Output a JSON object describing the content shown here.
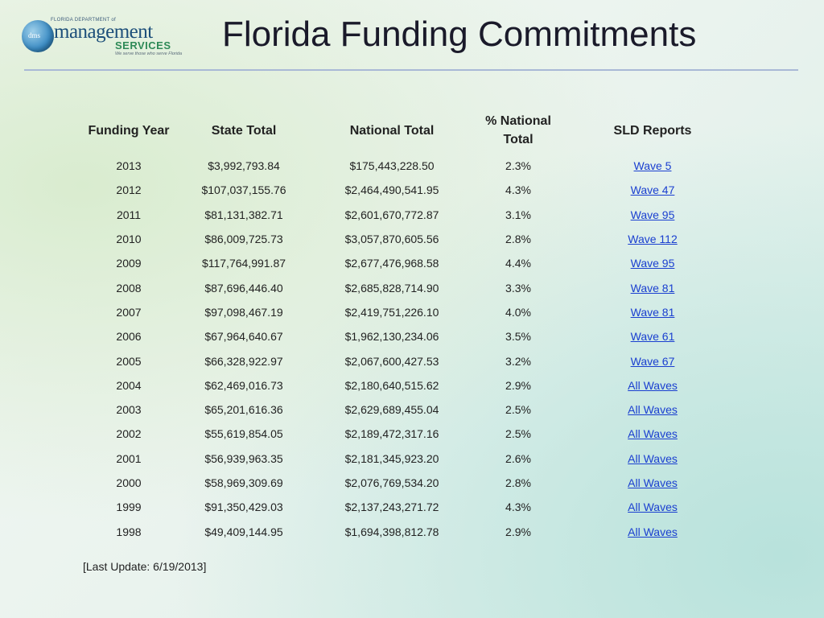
{
  "logo": {
    "small_text": "FLORIDA DEPARTMENT of",
    "badge": "dms",
    "line1": "management",
    "line2": "SERVICES",
    "tagline": "We serve those who serve Florida"
  },
  "title": "Florida Funding Commitments",
  "table": {
    "headers": [
      "Funding Year",
      "State Total",
      "National Total",
      "% National Total",
      "SLD Reports"
    ],
    "rows": [
      [
        "2013",
        "$3,992,793.84",
        "$175,443,228.50",
        "2.3%",
        "Wave 5"
      ],
      [
        "2012",
        "$107,037,155.76",
        "$2,464,490,541.95",
        "4.3%",
        "Wave 47"
      ],
      [
        "2011",
        "$81,131,382.71",
        "$2,601,670,772.87",
        "3.1%",
        "Wave 95"
      ],
      [
        "2010",
        "$86,009,725.73",
        "$3,057,870,605.56",
        "2.8%",
        "Wave 112"
      ],
      [
        "2009",
        "$117,764,991.87",
        "$2,677,476,968.58",
        "4.4%",
        "Wave 95"
      ],
      [
        "2008",
        "$87,696,446.40",
        "$2,685,828,714.90",
        "3.3%",
        "Wave 81"
      ],
      [
        "2007",
        "$97,098,467.19",
        "$2,419,751,226.10",
        "4.0%",
        "Wave 81"
      ],
      [
        "2006",
        "$67,964,640.67",
        "$1,962,130,234.06",
        "3.5%",
        "Wave 61"
      ],
      [
        "2005",
        "$66,328,922.97",
        "$2,067,600,427.53",
        "3.2%",
        "Wave 67"
      ],
      [
        "2004",
        "$62,469,016.73",
        "$2,180,640,515.62",
        "2.9%",
        "All Waves"
      ],
      [
        "2003",
        "$65,201,616.36",
        "$2,629,689,455.04",
        "2.5%",
        "All Waves"
      ],
      [
        "2002",
        "$55,619,854.05",
        "$2,189,472,317.16",
        "2.5%",
        "All Waves"
      ],
      [
        "2001",
        "$56,939,963.35",
        "$2,181,345,923.20",
        "2.6%",
        "All Waves"
      ],
      [
        "2000",
        "$58,969,309.69",
        "$2,076,769,534.20",
        "2.8%",
        "All Waves"
      ],
      [
        "1999",
        "$91,350,429.03",
        "$2,137,243,271.72",
        "4.3%",
        "All Waves"
      ],
      [
        "1998",
        "$49,409,144.95",
        "$1,694,398,812.78",
        "2.9%",
        "All Waves"
      ]
    ]
  },
  "footer": "[Last Update: 6/19/2013]",
  "colors": {
    "link": "#1a3fd0",
    "rule": "#a9b9d6",
    "title": "#1a1a2a"
  }
}
